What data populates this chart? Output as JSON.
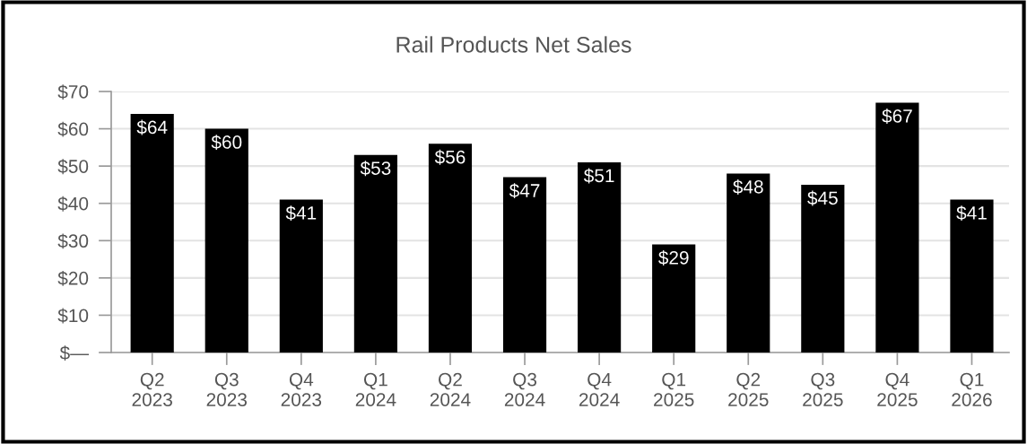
{
  "chart_data": {
    "type": "bar",
    "title": "Rail Products Net Sales",
    "categories": [
      "Q2\n2023",
      "Q3\n2023",
      "Q4\n2023",
      "Q1\n2024",
      "Q2\n2024",
      "Q3\n2024",
      "Q4\n2024",
      "Q1\n2025",
      "Q2\n2025",
      "Q3\n2025",
      "Q4\n2025",
      "Q1\n2026"
    ],
    "values": [
      64,
      60,
      41,
      53,
      56,
      47,
      51,
      29,
      48,
      45,
      67,
      41
    ],
    "value_labels": [
      "$64",
      "$60",
      "$41",
      "$53",
      "$56",
      "$47",
      "$51",
      "$29",
      "$48",
      "$45",
      "$67",
      "$41"
    ],
    "color": "#000000",
    "ylim": [
      0,
      70
    ],
    "yticks": [
      {
        "value": 0,
        "label": "$—"
      },
      {
        "value": 10,
        "label": "$10"
      },
      {
        "value": 20,
        "label": "$20"
      },
      {
        "value": 30,
        "label": "$30"
      },
      {
        "value": 40,
        "label": "$40"
      },
      {
        "value": 50,
        "label": "$50"
      },
      {
        "value": 60,
        "label": "$60"
      },
      {
        "value": 70,
        "label": "$70"
      }
    ],
    "grid": "y",
    "legend": false
  }
}
